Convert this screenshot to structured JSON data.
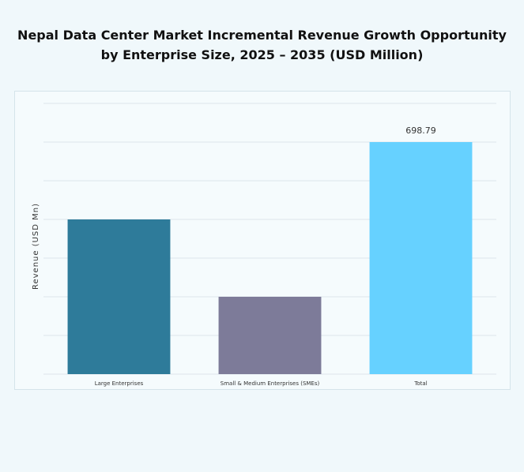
{
  "chart_data": {
    "type": "bar",
    "title": "Nepal Data Center Market Incremental Revenue Growth Opportunity by Enterprise Size, 2025 – 2035 (USD Million)",
    "y_label": "Revenue (USD Mn)",
    "categories": [
      "Large Enterprises",
      "Small & Medium Enterprises (SMEs)",
      "Total"
    ],
    "values": [
      465.86,
      232.93,
      698.79
    ],
    "value_labels": [
      null,
      null,
      "698.79"
    ],
    "colors": [
      "#2e7b9a",
      "#7d7b99",
      "#66d1ff"
    ],
    "ylim": [
      0,
      815.255
    ],
    "yticks": [
      0,
      116.465,
      232.93,
      349.395,
      465.86,
      582.325,
      698.79,
      815.255
    ],
    "show_ytick_labels": false,
    "grid": true
  }
}
